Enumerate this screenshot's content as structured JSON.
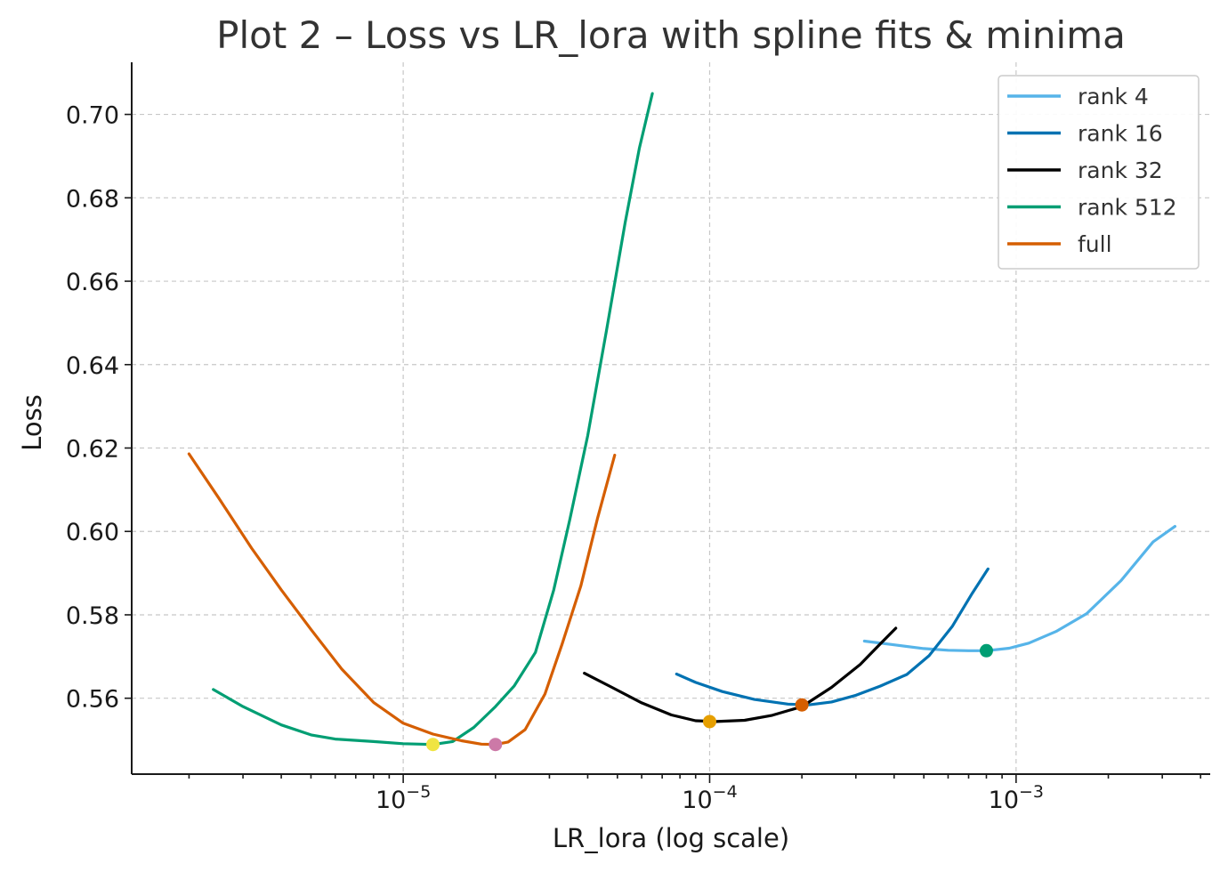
{
  "chart_data": {
    "type": "line",
    "title": "Plot 2 – Loss vs LR_lora with spline fits & minima",
    "xlabel": "LR_lora (log scale)",
    "ylabel": "Loss",
    "xscale": "log",
    "xlim": [
      1.3e-06,
      0.0043
    ],
    "ylim": [
      0.5418,
      0.7125
    ],
    "grid": true,
    "legend_position": "top-right",
    "x_ticks": [
      {
        "value": 1e-05,
        "base": "10",
        "exp": "−5"
      },
      {
        "value": 0.0001,
        "base": "10",
        "exp": "−4"
      },
      {
        "value": 0.001,
        "base": "10",
        "exp": "−3"
      }
    ],
    "y_ticks": [
      {
        "value": 0.56,
        "label": "0.56"
      },
      {
        "value": 0.58,
        "label": "0.58"
      },
      {
        "value": 0.6,
        "label": "0.60"
      },
      {
        "value": 0.62,
        "label": "0.62"
      },
      {
        "value": 0.64,
        "label": "0.64"
      },
      {
        "value": 0.66,
        "label": "0.66"
      },
      {
        "value": 0.68,
        "label": "0.68"
      },
      {
        "value": 0.7,
        "label": "0.70"
      }
    ],
    "series": [
      {
        "name": "rank 4",
        "color": "#56b4e9",
        "x": [
          0.00032,
          0.0004,
          0.0005,
          0.0006,
          0.0007,
          0.0008,
          0.00095,
          0.0011,
          0.00135,
          0.0017,
          0.0022,
          0.0028,
          0.0033
        ],
        "y": [
          0.5737,
          0.5728,
          0.5719,
          0.5715,
          0.5714,
          0.5714,
          0.572,
          0.5732,
          0.576,
          0.5803,
          0.5882,
          0.5975,
          0.6012
        ],
        "min_x": 0.0008,
        "min_y": 0.5714,
        "min_color": "#009e73"
      },
      {
        "name": "rank 16",
        "color": "#0072b2",
        "x": [
          7.8e-05,
          9e-05,
          0.00011,
          0.00014,
          0.00018,
          0.00021,
          0.00025,
          0.0003,
          0.00036,
          0.00044,
          0.00052,
          0.00062,
          0.00072,
          0.00081
        ],
        "y": [
          0.5658,
          0.5638,
          0.5616,
          0.5597,
          0.5586,
          0.5584,
          0.5591,
          0.5607,
          0.5629,
          0.5657,
          0.5702,
          0.5773,
          0.5852,
          0.591
        ],
        "min_x": 0.0002,
        "min_y": 0.5584,
        "min_color": "#d55e00"
      },
      {
        "name": "rank 32",
        "color": "#000000",
        "x": [
          3.9e-05,
          4.8e-05,
          6e-05,
          7.5e-05,
          9e-05,
          0.000105,
          0.00013,
          0.00016,
          0.0002,
          0.00025,
          0.00031,
          0.00036,
          0.000405
        ],
        "y": [
          0.566,
          0.5626,
          0.5589,
          0.556,
          0.5546,
          0.5544,
          0.5547,
          0.5559,
          0.558,
          0.5626,
          0.5681,
          0.573,
          0.5768
        ],
        "min_x": 0.0001,
        "min_y": 0.5544,
        "min_color": "#e69f00"
      },
      {
        "name": "rank 512",
        "color": "#009e73",
        "x": [
          2.4e-06,
          3e-06,
          4e-06,
          5e-06,
          6e-06,
          8e-06,
          1e-05,
          1.25e-05,
          1.45e-05,
          1.7e-05,
          2e-05,
          2.3e-05,
          2.7e-05,
          3.1e-05,
          3.5e-05,
          4e-05,
          4.6e-05,
          5.3e-05,
          5.9e-05,
          6.5e-05
        ],
        "y": [
          0.5621,
          0.558,
          0.5536,
          0.5512,
          0.5502,
          0.5496,
          0.5491,
          0.5489,
          0.5496,
          0.553,
          0.558,
          0.5629,
          0.571,
          0.586,
          0.603,
          0.623,
          0.648,
          0.674,
          0.692,
          0.705
        ],
        "min_x": 1.25e-05,
        "min_y": 0.5489,
        "min_color": "#f0e442"
      },
      {
        "name": "full",
        "color": "#d55e00",
        "x": [
          2e-06,
          2.5e-06,
          3.2e-06,
          4e-06,
          5e-06,
          6.3e-06,
          8e-06,
          1e-05,
          1.25e-05,
          1.55e-05,
          1.8e-05,
          2e-05,
          2.2e-05,
          2.5e-05,
          2.9e-05,
          3.3e-05,
          3.8e-05,
          4.3e-05,
          4.9e-05
        ],
        "y": [
          0.6186,
          0.608,
          0.596,
          0.586,
          0.5765,
          0.567,
          0.559,
          0.554,
          0.5514,
          0.5498,
          0.549,
          0.5489,
          0.5495,
          0.5525,
          0.561,
          0.573,
          0.587,
          0.603,
          0.6183
        ],
        "min_x": 2e-05,
        "min_y": 0.5489,
        "min_color": "#cc79a7"
      }
    ]
  }
}
